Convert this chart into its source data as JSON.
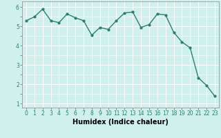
{
  "x": [
    0,
    1,
    2,
    3,
    4,
    5,
    6,
    7,
    8,
    9,
    10,
    11,
    12,
    13,
    14,
    15,
    16,
    17,
    18,
    19,
    20,
    21,
    22,
    23
  ],
  "y": [
    5.3,
    5.5,
    5.9,
    5.3,
    5.2,
    5.65,
    5.45,
    5.3,
    4.55,
    4.95,
    4.85,
    5.3,
    5.7,
    5.75,
    4.95,
    5.1,
    5.65,
    5.6,
    4.7,
    4.2,
    3.9,
    2.35,
    1.95,
    1.4
  ],
  "line_color": "#2e7d6e",
  "marker": "o",
  "marker_size": 2,
  "line_width": 1.0,
  "xlabel": "Humidex (Indice chaleur)",
  "xlim": [
    -0.5,
    23.5
  ],
  "ylim": [
    0.8,
    6.3
  ],
  "yticks": [
    1,
    2,
    3,
    4,
    5,
    6
  ],
  "xticks": [
    0,
    1,
    2,
    3,
    4,
    5,
    6,
    7,
    8,
    9,
    10,
    11,
    12,
    13,
    14,
    15,
    16,
    17,
    18,
    19,
    20,
    21,
    22,
    23
  ],
  "bg_color": "#cff0ec",
  "grid_color": "#ffffff",
  "tick_fontsize": 5.5,
  "xlabel_fontsize": 7.0
}
